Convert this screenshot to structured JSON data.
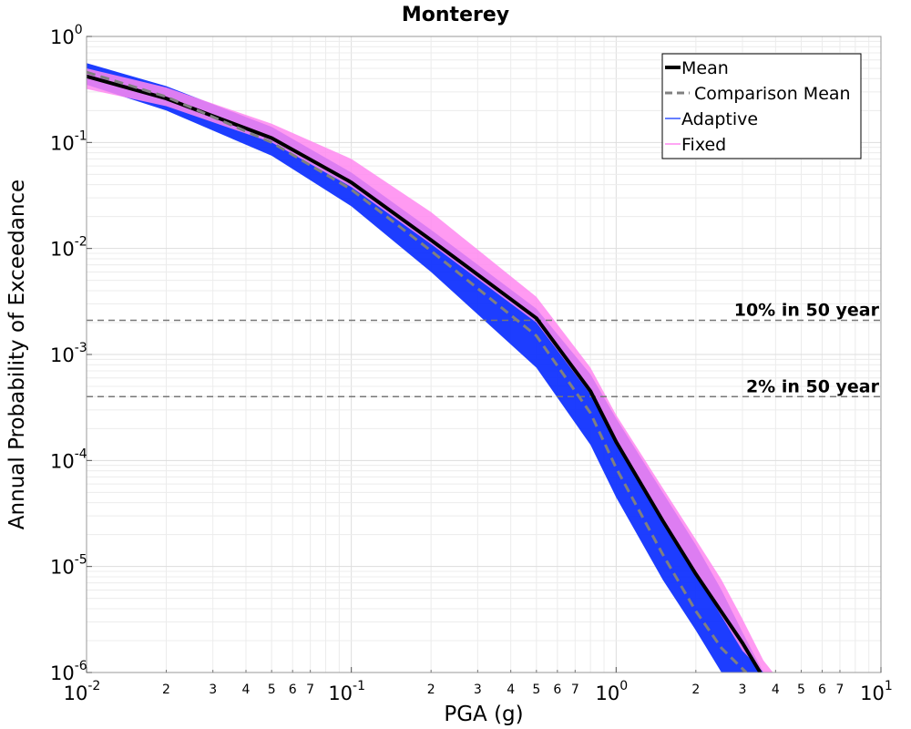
{
  "chart_data": {
    "type": "line",
    "title": "Monterey",
    "xlabel": "PGA (g)",
    "ylabel": "Annual Probability of Exceedance",
    "xscale": "log",
    "yscale": "log",
    "xlim": [
      0.01,
      10
    ],
    "ylim": [
      1e-06,
      1
    ],
    "grid": true,
    "legend_position": "top-right",
    "x_major_ticks": [
      {
        "base": "10",
        "exp": "-2",
        "value": 0.01
      },
      {
        "base": "10",
        "exp": "-1",
        "value": 0.1
      },
      {
        "base": "10",
        "exp": "0",
        "value": 1
      },
      {
        "base": "10",
        "exp": "1",
        "value": 10
      }
    ],
    "x_minor_labels": [
      "2",
      "3",
      "4",
      "5",
      "6",
      "7"
    ],
    "y_major_ticks": [
      {
        "base": "10",
        "exp": "0",
        "value": 1
      },
      {
        "base": "10",
        "exp": "-1",
        "value": 0.1
      },
      {
        "base": "10",
        "exp": "-2",
        "value": 0.01
      },
      {
        "base": "10",
        "exp": "-3",
        "value": 0.001
      },
      {
        "base": "10",
        "exp": "-4",
        "value": 0.0001
      },
      {
        "base": "10",
        "exp": "-5",
        "value": 1e-05
      },
      {
        "base": "10",
        "exp": "-6",
        "value": 1e-06
      }
    ],
    "series": [
      {
        "name": "Mean",
        "color": "#000000",
        "style": "solid",
        "x": [
          0.01,
          0.02,
          0.05,
          0.1,
          0.2,
          0.5,
          0.8,
          1,
          1.5,
          2,
          3,
          3.5
        ],
        "y": [
          0.42,
          0.26,
          0.11,
          0.042,
          0.012,
          0.0022,
          0.00045,
          0.00015,
          2.7e-05,
          8.5e-06,
          1.9e-06,
          1e-06
        ]
      },
      {
        "name": "Comparison Mean",
        "color": "#808080",
        "style": "dashed",
        "x": [
          0.01,
          0.02,
          0.05,
          0.1,
          0.2,
          0.5,
          0.8,
          1,
          1.5,
          2,
          2.5,
          3.1
        ],
        "y": [
          0.46,
          0.27,
          0.1,
          0.036,
          0.0095,
          0.0015,
          0.00028,
          8.5e-05,
          1.3e-05,
          3.8e-06,
          1.7e-06,
          1e-06
        ]
      }
    ],
    "bands": [
      {
        "name": "Adaptive",
        "color": "#1133ff",
        "x": [
          0.01,
          0.02,
          0.05,
          0.1,
          0.2,
          0.5,
          0.8,
          1,
          1.5,
          2,
          2.5,
          3,
          3.6,
          4.2
        ],
        "lower": [
          0.35,
          0.2,
          0.075,
          0.025,
          0.006,
          0.00075,
          0.00014,
          4.5e-05,
          7.5e-06,
          2.5e-06,
          1e-06,
          6e-07,
          4e-07,
          3e-07
        ],
        "upper": [
          0.56,
          0.34,
          0.14,
          0.052,
          0.015,
          0.0027,
          0.00065,
          0.00025,
          5e-05,
          1.6e-05,
          6e-06,
          2.4e-06,
          1e-06,
          5e-07
        ]
      },
      {
        "name": "Fixed",
        "color": "#ff88f0",
        "x": [
          0.01,
          0.02,
          0.05,
          0.1,
          0.2,
          0.5,
          0.8,
          1,
          1.5,
          2,
          2.5,
          3,
          3.6,
          4.2
        ],
        "lower": [
          0.32,
          0.22,
          0.1,
          0.038,
          0.011,
          0.002,
          0.00042,
          0.00014,
          2.6e-05,
          8.5e-06,
          3.4e-06,
          1.6e-06,
          1e-06,
          6e-07
        ],
        "upper": [
          0.5,
          0.33,
          0.15,
          0.07,
          0.022,
          0.0035,
          0.00075,
          0.00027,
          5.5e-05,
          1.8e-05,
          7.5e-06,
          3.2e-06,
          1.3e-06,
          8e-07
        ]
      }
    ],
    "reference_lines": [
      {
        "label": "10% in 50 year",
        "y": 0.0021,
        "color": "#777777"
      },
      {
        "label": "2% in 50 year",
        "y": 0.0004,
        "color": "#777777"
      }
    ],
    "legend": [
      {
        "label": "Mean",
        "color": "#000000",
        "style": "solid"
      },
      {
        "label": "Comparison Mean",
        "color": "#808080",
        "style": "dashed"
      },
      {
        "label": "Adaptive",
        "color": "#3355ff",
        "style": "thin"
      },
      {
        "label": "Fixed",
        "color": "#ff88f0",
        "style": "thin"
      }
    ]
  }
}
